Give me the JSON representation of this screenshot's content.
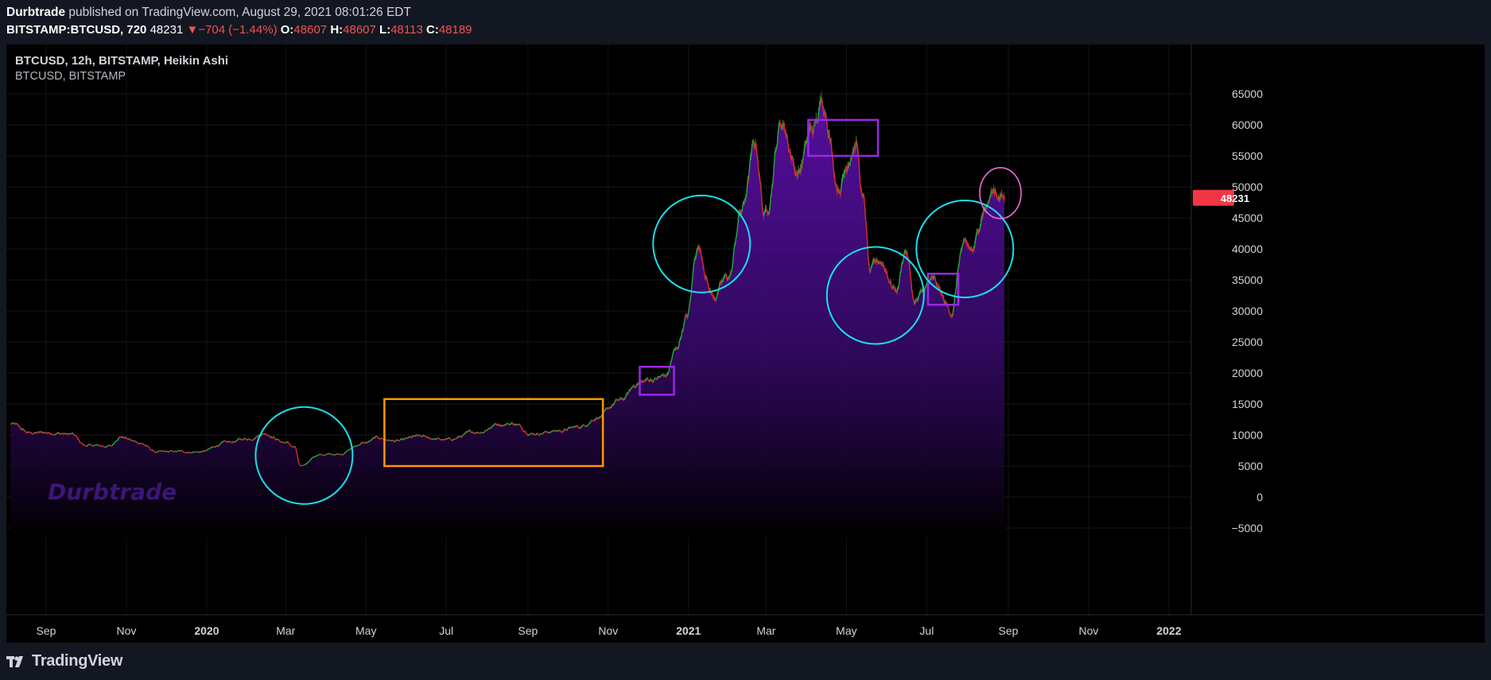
{
  "header": {
    "author": "Durbtrade",
    "published_text": " published on TradingView.com, August 29, 2021 08:01:26 EDT",
    "symbol": "BITSTAMP:BTCUSD, 720",
    "last": "48231",
    "change_arrow": "▼",
    "change": "−704 (−1.44%)",
    "o_label": "O:",
    "o_value": "48607",
    "h_label": "H:",
    "h_value": "48607",
    "l_label": "L:",
    "l_value": "48113",
    "c_label": "C:",
    "c_value": "48189"
  },
  "legend": {
    "main": "BTCUSD, 12h, BITSTAMP, Heikin Ashi",
    "sub": "BTCUSD, BITSTAMP"
  },
  "watermark": "Durbtrade",
  "footer": {
    "brand": "TradingView"
  },
  "colors": {
    "up": "#26a83a",
    "down": "#d32f2f",
    "area_top": "#5b0fa8",
    "cyan": "#19e0ee",
    "orange": "#ff9800",
    "purple": "#9c27e6",
    "pink": "#f06bd8",
    "price_label_bg": "#f23645"
  },
  "chart_data": {
    "type": "line",
    "title": "BTCUSD, 12h, BITSTAMP, Heikin Ashi",
    "subtitle": "BTCUSD, BITSTAMP",
    "ylim": [
      -6500,
      66500
    ],
    "y_ticks": [
      -5000,
      0,
      5000,
      10000,
      15000,
      20000,
      25000,
      30000,
      35000,
      40000,
      45000,
      50000,
      55000,
      60000,
      65000
    ],
    "x_ticks": [
      {
        "label": "Sep",
        "date": "2019-09-01",
        "bold": false
      },
      {
        "label": "Nov",
        "date": "2019-11-01",
        "bold": false
      },
      {
        "label": "2020",
        "date": "2020-01-01",
        "bold": true
      },
      {
        "label": "Mar",
        "date": "2020-03-01",
        "bold": false
      },
      {
        "label": "May",
        "date": "2020-05-01",
        "bold": false
      },
      {
        "label": "Jul",
        "date": "2020-07-01",
        "bold": false
      },
      {
        "label": "Sep",
        "date": "2020-09-01",
        "bold": false
      },
      {
        "label": "Nov",
        "date": "2020-11-01",
        "bold": false
      },
      {
        "label": "2021",
        "date": "2021-01-01",
        "bold": true
      },
      {
        "label": "Mar",
        "date": "2021-03-01",
        "bold": false
      },
      {
        "label": "May",
        "date": "2021-05-01",
        "bold": false
      },
      {
        "label": "Jul",
        "date": "2021-07-01",
        "bold": false
      },
      {
        "label": "Sep",
        "date": "2021-09-01",
        "bold": false
      },
      {
        "label": "Nov",
        "date": "2021-11-01",
        "bold": false
      },
      {
        "label": "2022",
        "date": "2022-01-01",
        "bold": true
      }
    ],
    "xlim": [
      "2019-08-05",
      "2022-01-20"
    ],
    "last_price": 48231,
    "series": [
      {
        "name": "BTCUSD",
        "points": [
          [
            "2019-08-05",
            11800
          ],
          [
            "2019-08-20",
            10300
          ],
          [
            "2019-09-05",
            10400
          ],
          [
            "2019-09-20",
            10100
          ],
          [
            "2019-10-01",
            8300
          ],
          [
            "2019-10-20",
            8200
          ],
          [
            "2019-10-27",
            9800
          ],
          [
            "2019-11-10",
            8800
          ],
          [
            "2019-11-25",
            7200
          ],
          [
            "2019-12-10",
            7300
          ],
          [
            "2019-12-28",
            7300
          ],
          [
            "2020-01-15",
            8700
          ],
          [
            "2020-02-01",
            9400
          ],
          [
            "2020-02-14",
            10300
          ],
          [
            "2020-03-01",
            8800
          ],
          [
            "2020-03-08",
            8000
          ],
          [
            "2020-03-12",
            4900
          ],
          [
            "2020-03-25",
            6700
          ],
          [
            "2020-04-10",
            7000
          ],
          [
            "2020-04-30",
            8700
          ],
          [
            "2020-05-10",
            9500
          ],
          [
            "2020-05-25",
            9000
          ],
          [
            "2020-06-10",
            9700
          ],
          [
            "2020-07-01",
            9200
          ],
          [
            "2020-07-25",
            10500
          ],
          [
            "2020-08-10",
            11800
          ],
          [
            "2020-08-20",
            11900
          ],
          [
            "2020-09-05",
            10300
          ],
          [
            "2020-09-25",
            10700
          ],
          [
            "2020-10-10",
            11300
          ],
          [
            "2020-10-25",
            13000
          ],
          [
            "2020-11-10",
            15500
          ],
          [
            "2020-11-25",
            18500
          ],
          [
            "2020-12-05",
            19000
          ],
          [
            "2020-12-15",
            19500
          ],
          [
            "2020-12-22",
            23500
          ],
          [
            "2020-12-31",
            29000
          ],
          [
            "2021-01-08",
            40500
          ],
          [
            "2021-01-20",
            32500
          ],
          [
            "2021-02-01",
            35500
          ],
          [
            "2021-02-10",
            46000
          ],
          [
            "2021-02-21",
            56500
          ],
          [
            "2021-02-28",
            45500
          ],
          [
            "2021-03-13",
            60500
          ],
          [
            "2021-03-25",
            52500
          ],
          [
            "2021-04-05",
            59000
          ],
          [
            "2021-04-14",
            63500
          ],
          [
            "2021-04-25",
            50500
          ],
          [
            "2021-05-08",
            57500
          ],
          [
            "2021-05-14",
            47500
          ],
          [
            "2021-05-19",
            36000
          ],
          [
            "2021-05-27",
            38000
          ],
          [
            "2021-06-08",
            33500
          ],
          [
            "2021-06-15",
            40000
          ],
          [
            "2021-06-22",
            31500
          ],
          [
            "2021-07-05",
            34500
          ],
          [
            "2021-07-20",
            30000
          ],
          [
            "2021-07-28",
            40000
          ],
          [
            "2021-08-05",
            39500
          ],
          [
            "2021-08-14",
            47000
          ],
          [
            "2021-08-22",
            49500
          ],
          [
            "2021-08-29",
            48189
          ]
        ]
      }
    ],
    "annotations": [
      {
        "shape": "circle",
        "color": "cyan",
        "center_date": "2020-03-15",
        "center_price": 6700
      },
      {
        "shape": "rectangle",
        "color": "orange",
        "from_date": "2020-05-15",
        "to_date": "2020-10-28",
        "from_price": 5000,
        "to_price": 15800
      },
      {
        "shape": "rectangle",
        "color": "purple",
        "from_date": "2020-11-25",
        "to_date": "2020-12-21",
        "from_price": 16500,
        "to_price": 21000
      },
      {
        "shape": "circle",
        "color": "cyan",
        "center_date": "2021-01-11",
        "center_price": 40800
      },
      {
        "shape": "rectangle",
        "color": "purple",
        "from_date": "2021-04-02",
        "to_date": "2021-05-25",
        "from_price": 55000,
        "to_price": 60800
      },
      {
        "shape": "circle",
        "color": "cyan",
        "center_date": "2021-05-23",
        "center_price": 32500
      },
      {
        "shape": "rectangle",
        "color": "purple",
        "from_date": "2021-07-02",
        "to_date": "2021-07-25",
        "from_price": 31000,
        "to_price": 36000
      },
      {
        "shape": "circle",
        "color": "cyan",
        "center_date": "2021-07-30",
        "center_price": 40000
      },
      {
        "shape": "ellipse",
        "color": "pink",
        "center_date": "2021-08-26",
        "center_price": 49000
      }
    ]
  }
}
